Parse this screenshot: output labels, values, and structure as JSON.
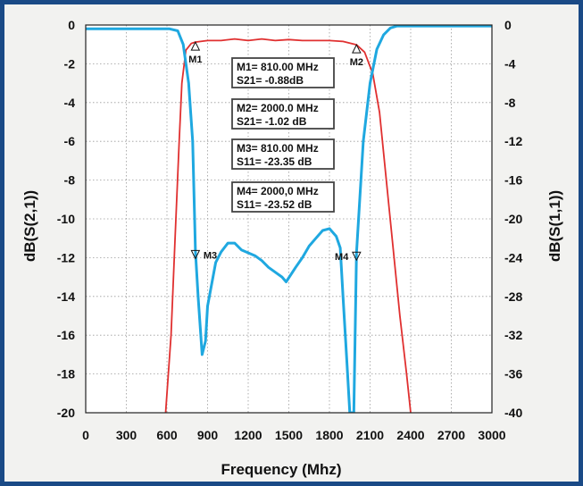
{
  "chart_data": {
    "type": "line",
    "xlabel": "Frequency (Mhz)",
    "ylabel_left": "dB(S(2,1))",
    "ylabel_right": "dB(S(1,1))",
    "xlim": [
      0,
      3000
    ],
    "ylim_left": [
      -20,
      0
    ],
    "ylim_right": [
      -40,
      0
    ],
    "x_ticks": [
      "0",
      "300",
      "600",
      "900",
      "1200",
      "1500",
      "1800",
      "2100",
      "2400",
      "2700",
      "3000"
    ],
    "y_ticks_left": [
      "0",
      "-2",
      "-4",
      "-6",
      "-8",
      "-10",
      "-12",
      "-14",
      "-16",
      "-18",
      "-20"
    ],
    "y_ticks_right": [
      "0",
      "-4",
      "-8",
      "-12",
      "-16",
      "-20",
      "-24",
      "-28",
      "-32",
      "-36",
      "-40"
    ],
    "grid": true,
    "series": [
      {
        "axis": "left",
        "color": "#e03030",
        "points": [
          [
            590,
            -20
          ],
          [
            630,
            -16
          ],
          [
            660,
            -11
          ],
          [
            690,
            -6
          ],
          [
            710,
            -3
          ],
          [
            740,
            -1.3
          ],
          [
            780,
            -0.95
          ],
          [
            810,
            -0.88
          ],
          [
            900,
            -0.8
          ],
          [
            1000,
            -0.8
          ],
          [
            1100,
            -0.72
          ],
          [
            1200,
            -0.8
          ],
          [
            1300,
            -0.72
          ],
          [
            1400,
            -0.8
          ],
          [
            1500,
            -0.75
          ],
          [
            1600,
            -0.8
          ],
          [
            1700,
            -0.8
          ],
          [
            1800,
            -0.8
          ],
          [
            1900,
            -0.85
          ],
          [
            2000,
            -1.02
          ],
          [
            2060,
            -1.4
          ],
          [
            2120,
            -2.5
          ],
          [
            2170,
            -4.5
          ],
          [
            2220,
            -8
          ],
          [
            2270,
            -11.5
          ],
          [
            2320,
            -15
          ],
          [
            2370,
            -18
          ],
          [
            2400,
            -20
          ]
        ]
      },
      {
        "axis": "right",
        "color": "#1fa8e0",
        "points": [
          [
            0,
            -0.4
          ],
          [
            620,
            -0.4
          ],
          [
            680,
            -0.6
          ],
          [
            720,
            -2
          ],
          [
            760,
            -6
          ],
          [
            790,
            -12
          ],
          [
            810,
            -23.35
          ],
          [
            830,
            -28
          ],
          [
            860,
            -34
          ],
          [
            885,
            -32.6
          ],
          [
            900,
            -29
          ],
          [
            960,
            -24.5
          ],
          [
            1000,
            -23.4
          ],
          [
            1050,
            -22.5
          ],
          [
            1100,
            -22.5
          ],
          [
            1150,
            -23.2
          ],
          [
            1200,
            -23.5
          ],
          [
            1250,
            -23.8
          ],
          [
            1300,
            -24.3
          ],
          [
            1350,
            -25
          ],
          [
            1400,
            -25.5
          ],
          [
            1450,
            -26
          ],
          [
            1480,
            -26.5
          ],
          [
            1550,
            -25
          ],
          [
            1600,
            -24
          ],
          [
            1650,
            -22.8
          ],
          [
            1700,
            -22
          ],
          [
            1750,
            -21.2
          ],
          [
            1800,
            -21
          ],
          [
            1850,
            -21.8
          ],
          [
            1880,
            -23
          ],
          [
            1900,
            -28
          ],
          [
            1930,
            -35
          ],
          [
            1950,
            -40
          ],
          [
            1980,
            -40
          ],
          [
            2000,
            -23.52
          ],
          [
            2050,
            -12
          ],
          [
            2100,
            -6
          ],
          [
            2150,
            -2.5
          ],
          [
            2200,
            -1
          ],
          [
            2250,
            -0.3
          ],
          [
            2300,
            -0.1
          ],
          [
            3000,
            -0.1
          ]
        ]
      }
    ],
    "markers": [
      {
        "name": "M1",
        "x": 810,
        "y": -0.88,
        "axis": "left",
        "label_side": "below"
      },
      {
        "name": "M2",
        "x": 2000,
        "y": -1.02,
        "axis": "left",
        "label_side": "below"
      },
      {
        "name": "M3",
        "x": 810,
        "y": -23.35,
        "axis": "right",
        "label_side": "right"
      },
      {
        "name": "M4",
        "x": 2000,
        "y": -23.52,
        "axis": "right",
        "label_side": "left"
      }
    ],
    "annotations": [
      {
        "line1": "M1= 810.00 MHz",
        "line2": "S21= -0.88dB"
      },
      {
        "line1": "M2= 2000.0 MHz",
        "line2": "S21= -1.02 dB"
      },
      {
        "line1": "M3= 810.00 MHz",
        "line2": "S11= -23.35 dB"
      },
      {
        "line1": "M4= 2000,0 MHz",
        "line2": "S11= -23.52 dB"
      }
    ]
  }
}
